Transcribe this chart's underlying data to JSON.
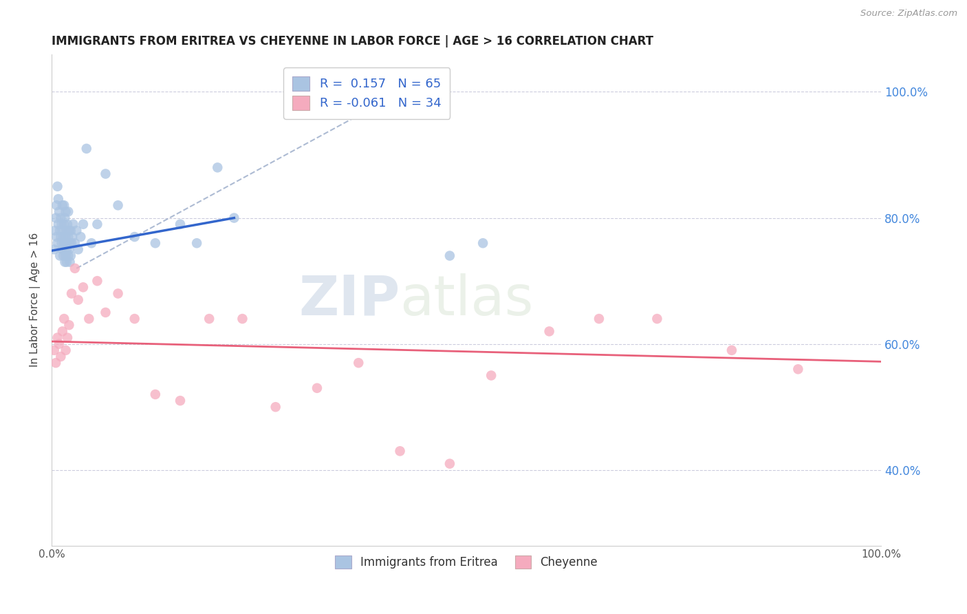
{
  "title": "IMMIGRANTS FROM ERITREA VS CHEYENNE IN LABOR FORCE | AGE > 16 CORRELATION CHART",
  "source": "Source: ZipAtlas.com",
  "ylabel": "In Labor Force | Age > 16",
  "r_blue": 0.157,
  "n_blue": 65,
  "r_pink": -0.061,
  "n_pink": 34,
  "xlim": [
    0.0,
    1.0
  ],
  "ylim": [
    0.28,
    1.06
  ],
  "ytick_values": [
    0.4,
    0.6,
    0.8,
    1.0
  ],
  "ytick_labels": [
    "40.0%",
    "60.0%",
    "80.0%",
    "100.0%"
  ],
  "legend_label_blue": "Immigrants from Eritrea",
  "legend_label_pink": "Cheyenne",
  "blue_color": "#aac4e2",
  "pink_color": "#f5abbe",
  "blue_line_color": "#3366cc",
  "pink_line_color": "#e8607a",
  "dashed_line_color": "#99aac8",
  "watermark_zip": "ZIP",
  "watermark_atlas": "atlas",
  "blue_scatter_x": [
    0.003,
    0.004,
    0.005,
    0.006,
    0.006,
    0.007,
    0.007,
    0.008,
    0.008,
    0.009,
    0.01,
    0.01,
    0.011,
    0.011,
    0.012,
    0.012,
    0.013,
    0.013,
    0.013,
    0.014,
    0.014,
    0.015,
    0.015,
    0.015,
    0.016,
    0.016,
    0.016,
    0.017,
    0.017,
    0.017,
    0.018,
    0.018,
    0.018,
    0.019,
    0.019,
    0.02,
    0.02,
    0.02,
    0.021,
    0.021,
    0.022,
    0.022,
    0.023,
    0.023,
    0.024,
    0.025,
    0.026,
    0.028,
    0.03,
    0.032,
    0.035,
    0.038,
    0.042,
    0.048,
    0.055,
    0.065,
    0.08,
    0.1,
    0.125,
    0.155,
    0.175,
    0.2,
    0.22,
    0.48,
    0.52
  ],
  "blue_scatter_y": [
    0.75,
    0.78,
    0.8,
    0.77,
    0.82,
    0.76,
    0.85,
    0.79,
    0.83,
    0.81,
    0.74,
    0.78,
    0.77,
    0.8,
    0.76,
    0.79,
    0.75,
    0.78,
    0.82,
    0.74,
    0.77,
    0.76,
    0.79,
    0.82,
    0.73,
    0.76,
    0.8,
    0.74,
    0.77,
    0.81,
    0.75,
    0.78,
    0.73,
    0.76,
    0.79,
    0.74,
    0.77,
    0.81,
    0.75,
    0.78,
    0.73,
    0.76,
    0.74,
    0.78,
    0.76,
    0.77,
    0.79,
    0.76,
    0.78,
    0.75,
    0.77,
    0.79,
    0.91,
    0.76,
    0.79,
    0.87,
    0.82,
    0.77,
    0.76,
    0.79,
    0.76,
    0.88,
    0.8,
    0.74,
    0.76
  ],
  "pink_scatter_x": [
    0.003,
    0.005,
    0.007,
    0.009,
    0.011,
    0.013,
    0.015,
    0.017,
    0.019,
    0.021,
    0.024,
    0.028,
    0.032,
    0.038,
    0.045,
    0.055,
    0.065,
    0.08,
    0.1,
    0.125,
    0.155,
    0.19,
    0.23,
    0.27,
    0.32,
    0.37,
    0.42,
    0.48,
    0.53,
    0.6,
    0.66,
    0.73,
    0.82,
    0.9
  ],
  "pink_scatter_y": [
    0.59,
    0.57,
    0.61,
    0.6,
    0.58,
    0.62,
    0.64,
    0.59,
    0.61,
    0.63,
    0.68,
    0.72,
    0.67,
    0.69,
    0.64,
    0.7,
    0.65,
    0.68,
    0.64,
    0.52,
    0.51,
    0.64,
    0.64,
    0.5,
    0.53,
    0.57,
    0.43,
    0.41,
    0.55,
    0.62,
    0.64,
    0.64,
    0.59,
    0.56
  ],
  "blue_trend_x": [
    0.0,
    0.22
  ],
  "blue_trend_y": [
    0.748,
    0.8
  ],
  "pink_trend_x": [
    0.0,
    1.0
  ],
  "pink_trend_y": [
    0.604,
    0.572
  ],
  "dashed_trend_x": [
    0.03,
    0.45
  ],
  "dashed_trend_y": [
    0.72,
    1.02
  ]
}
